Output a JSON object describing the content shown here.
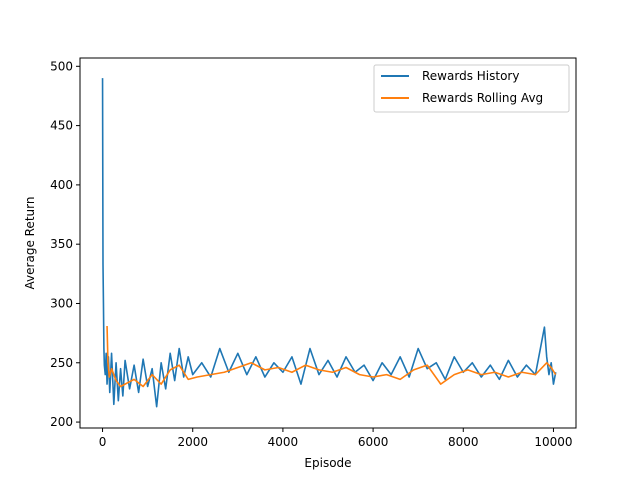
{
  "chart_data": {
    "type": "line",
    "title": "",
    "xlabel": "Episode",
    "ylabel": "Average Return",
    "xlim": [
      -500,
      10500
    ],
    "ylim": [
      195,
      507
    ],
    "xticks": [
      0,
      2000,
      4000,
      6000,
      8000,
      10000
    ],
    "yticks": [
      200,
      250,
      300,
      350,
      400,
      450,
      500
    ],
    "xtick_labels": [
      "0",
      "2000",
      "4000",
      "6000",
      "8000",
      "10000"
    ],
    "ytick_labels": [
      "200",
      "250",
      "300",
      "350",
      "400",
      "450",
      "500"
    ],
    "grid": false,
    "legend_position": "top-right",
    "series": [
      {
        "name": "Rewards History",
        "color": "#1f77b4",
        "x": [
          0,
          10,
          20,
          30,
          40,
          60,
          80,
          100,
          130,
          160,
          200,
          250,
          300,
          350,
          400,
          450,
          500,
          600,
          700,
          800,
          900,
          1000,
          1100,
          1200,
          1300,
          1400,
          1500,
          1600,
          1700,
          1800,
          1900,
          2000,
          2200,
          2400,
          2600,
          2800,
          3000,
          3200,
          3400,
          3600,
          3800,
          4000,
          4200,
          4400,
          4600,
          4800,
          5000,
          5200,
          5400,
          5600,
          5800,
          6000,
          6200,
          6400,
          6600,
          6800,
          7000,
          7200,
          7400,
          7600,
          7800,
          8000,
          8200,
          8400,
          8600,
          8800,
          9000,
          9200,
          9400,
          9600,
          9800,
          9850,
          9900,
          9950,
          10000,
          10050
        ],
        "y": [
          490,
          333,
          300,
          262,
          248,
          240,
          258,
          232,
          255,
          225,
          258,
          215,
          250,
          218,
          245,
          222,
          252,
          228,
          248,
          225,
          253,
          230,
          245,
          213,
          250,
          228,
          258,
          235,
          262,
          238,
          255,
          240,
          250,
          238,
          262,
          242,
          258,
          240,
          255,
          238,
          250,
          242,
          255,
          232,
          262,
          240,
          252,
          238,
          255,
          242,
          248,
          235,
          250,
          240,
          255,
          238,
          262,
          245,
          250,
          236,
          255,
          242,
          250,
          238,
          248,
          236,
          252,
          238,
          248,
          240,
          280,
          255,
          240,
          250,
          232,
          242
        ]
      },
      {
        "name": "Rewards Rolling Avg",
        "color": "#ff7f0e",
        "x": [
          100,
          120,
          150,
          200,
          300,
          400,
          500,
          700,
          900,
          1100,
          1300,
          1500,
          1700,
          1900,
          2100,
          2400,
          2700,
          3000,
          3300,
          3600,
          3900,
          4200,
          4500,
          4800,
          5100,
          5400,
          5700,
          6000,
          6300,
          6600,
          6900,
          7200,
          7500,
          7800,
          8100,
          8400,
          8700,
          9000,
          9300,
          9600,
          9850,
          9950,
          10050
        ],
        "y": [
          281,
          250,
          238,
          245,
          235,
          230,
          232,
          236,
          230,
          240,
          232,
          244,
          248,
          236,
          238,
          240,
          242,
          246,
          250,
          244,
          246,
          242,
          248,
          244,
          242,
          246,
          240,
          238,
          240,
          236,
          244,
          248,
          232,
          240,
          244,
          240,
          242,
          238,
          242,
          240,
          250,
          246,
          240
        ]
      }
    ]
  }
}
